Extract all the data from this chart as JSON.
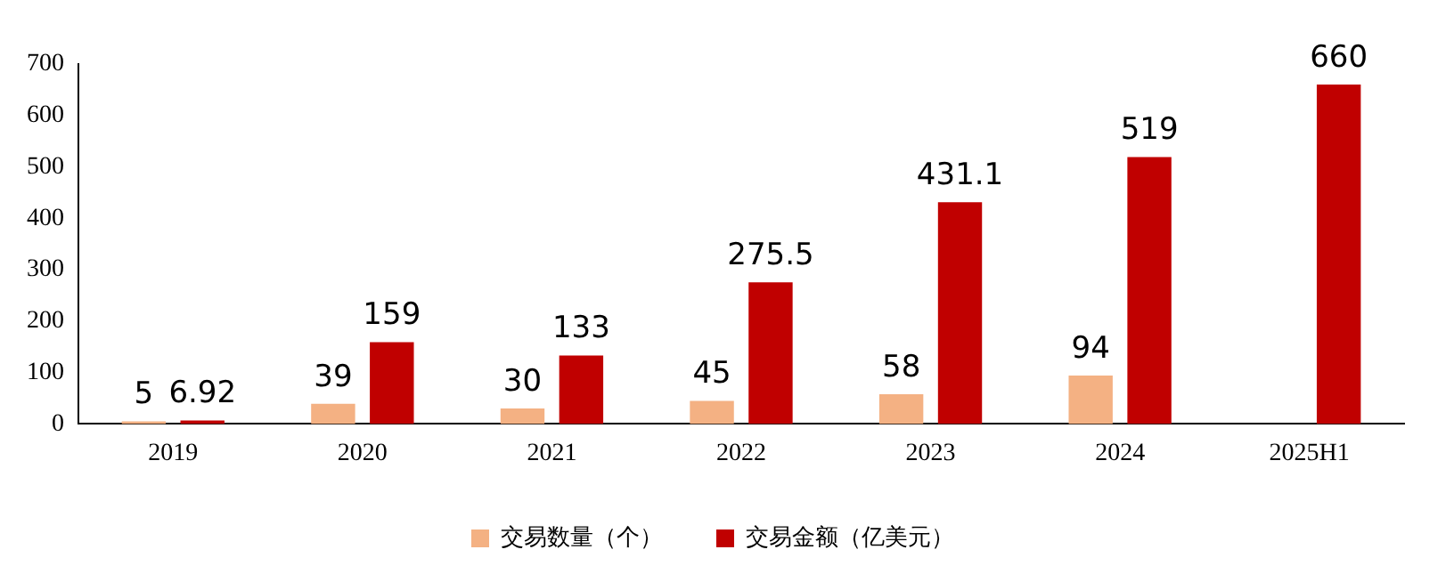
{
  "chart_data": {
    "type": "bar",
    "categories": [
      "2019",
      "2020",
      "2021",
      "2022",
      "2023",
      "2024",
      "2025H1"
    ],
    "series": [
      {
        "name": "交易数量（个）",
        "color": "#f4b183",
        "values": [
          5,
          39,
          30,
          45,
          58,
          94,
          null
        ]
      },
      {
        "name": "交易金额（亿美元）",
        "color": "#c00000",
        "values": [
          6.92,
          159,
          133,
          275.5,
          431.1,
          519,
          660
        ]
      }
    ],
    "ylim": [
      0,
      700
    ],
    "yticks": [
      0,
      100,
      200,
      300,
      400,
      500,
      600,
      700
    ],
    "grid": false,
    "legend": "bottom",
    "data_labels": true
  }
}
